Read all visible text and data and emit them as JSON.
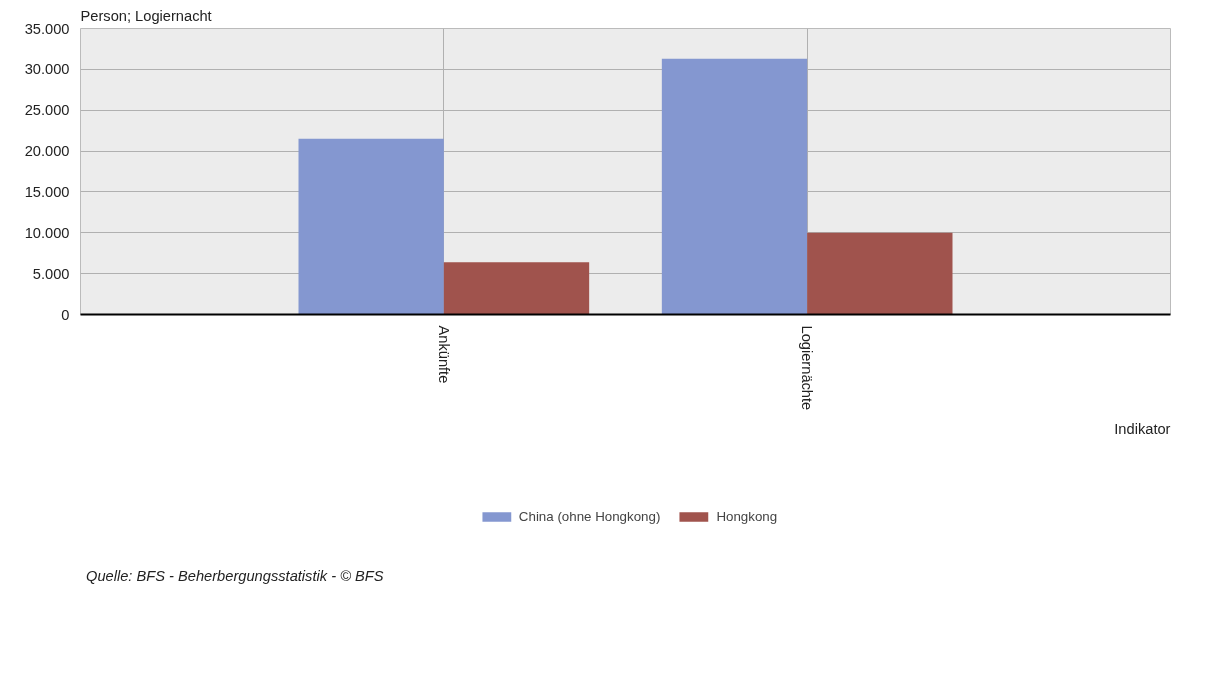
{
  "chart_data": {
    "type": "bar",
    "ylabel": "Person; Logiernacht",
    "xlabel": "Indikator",
    "categories": [
      "Ankünfte",
      "Logiernächte"
    ],
    "series": [
      {
        "name": "China (ohne Hongkong)",
        "color": "#8497d0",
        "values": [
          21500,
          31300
        ]
      },
      {
        "name": "Hongkong",
        "color": "#a0534d",
        "values": [
          6400,
          10000
        ]
      }
    ],
    "ylim": [
      0,
      35000
    ],
    "yticks": [
      {
        "value": 0,
        "label": "0"
      },
      {
        "value": 5000,
        "label": "5.000"
      },
      {
        "value": 10000,
        "label": "10.000"
      },
      {
        "value": 15000,
        "label": "15.000"
      },
      {
        "value": 20000,
        "label": "20.000"
      },
      {
        "value": 25000,
        "label": "25.000"
      },
      {
        "value": 30000,
        "label": "30.000"
      },
      {
        "value": 35000,
        "label": "35.000"
      }
    ],
    "grid": true,
    "legend": "bottom",
    "annotations": [
      "Quelle: BFS - Beherbergungsstatistik - © BFS"
    ]
  }
}
